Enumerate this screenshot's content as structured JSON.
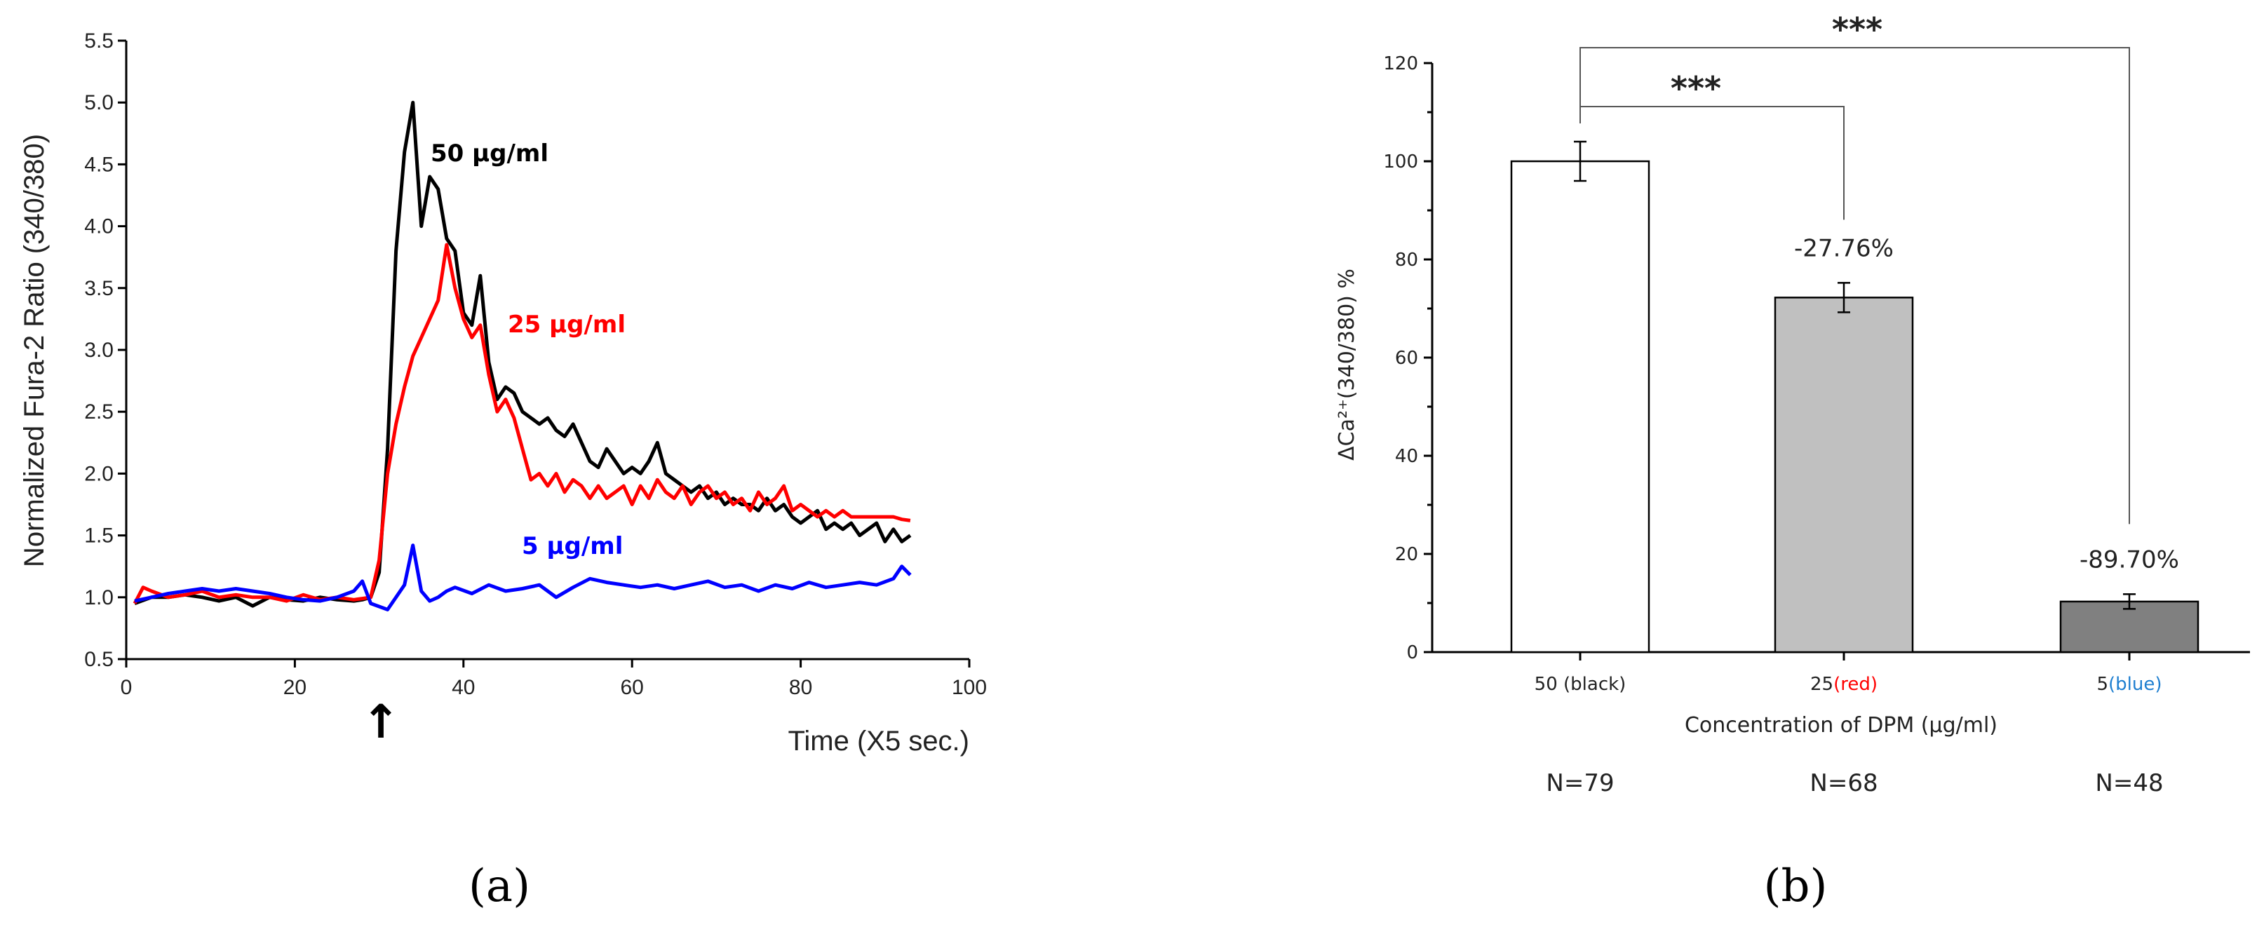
{
  "chart_data": [
    {
      "panel": "a",
      "type": "line",
      "xlabel": "Time (X5 sec.)",
      "ylabel": "Normalized Fura-2 Ratio (340/380)",
      "xlim": [
        0,
        100
      ],
      "ylim": [
        0.5,
        5.5
      ],
      "xticks": [
        "0",
        "20",
        "40",
        "60",
        "80",
        "100"
      ],
      "yticks": [
        "0.5",
        "1.0",
        "1.5",
        "2.0",
        "2.5",
        "3.0",
        "3.5",
        "4.0",
        "4.5",
        "5.0",
        "5.5"
      ],
      "arrow_x": 30,
      "arrow_symbol": "↑",
      "series": [
        {
          "name": "50 µg/ml",
          "color": "#000000",
          "x": [
            1,
            3,
            5,
            7,
            9,
            11,
            13,
            15,
            17,
            19,
            21,
            23,
            25,
            27,
            28,
            29,
            30,
            31,
            32,
            33,
            34,
            35,
            36,
            37,
            38,
            39,
            40,
            41,
            42,
            43,
            44,
            45,
            46,
            47,
            48,
            49,
            50,
            51,
            52,
            53,
            54,
            55,
            56,
            57,
            58,
            59,
            60,
            61,
            62,
            63,
            64,
            65,
            66,
            67,
            68,
            69,
            70,
            71,
            72,
            73,
            74,
            75,
            76,
            77,
            78,
            79,
            80,
            81,
            82,
            83,
            84,
            85,
            86,
            87,
            88,
            89,
            90,
            91,
            92,
            93
          ],
          "y": [
            0.95,
            1.0,
            1.0,
            1.02,
            1.0,
            0.97,
            1.0,
            0.93,
            1.0,
            0.98,
            0.97,
            1.0,
            0.98,
            0.97,
            0.98,
            1.0,
            1.2,
            2.2,
            3.8,
            4.6,
            5.0,
            4.0,
            4.4,
            4.3,
            3.9,
            3.8,
            3.3,
            3.2,
            3.6,
            2.9,
            2.6,
            2.7,
            2.65,
            2.5,
            2.45,
            2.4,
            2.45,
            2.35,
            2.3,
            2.4,
            2.25,
            2.1,
            2.05,
            2.2,
            2.1,
            2.0,
            2.05,
            2.0,
            2.1,
            2.25,
            2.0,
            1.95,
            1.9,
            1.85,
            1.9,
            1.8,
            1.85,
            1.75,
            1.8,
            1.75,
            1.75,
            1.7,
            1.8,
            1.7,
            1.75,
            1.65,
            1.6,
            1.65,
            1.7,
            1.55,
            1.6,
            1.55,
            1.6,
            1.5,
            1.55,
            1.6,
            1.45,
            1.55,
            1.45,
            1.5
          ]
        },
        {
          "name": "25 µg/ml",
          "color": "#ff0000",
          "x": [
            1,
            2,
            3,
            5,
            7,
            9,
            11,
            13,
            15,
            17,
            19,
            21,
            23,
            25,
            27,
            28,
            29,
            30,
            31,
            32,
            33,
            34,
            35,
            36,
            37,
            38,
            39,
            40,
            41,
            42,
            43,
            44,
            45,
            46,
            47,
            48,
            49,
            50,
            51,
            52,
            53,
            54,
            55,
            56,
            57,
            58,
            59,
            60,
            61,
            62,
            63,
            64,
            65,
            66,
            67,
            68,
            69,
            70,
            71,
            72,
            73,
            74,
            75,
            76,
            77,
            78,
            79,
            80,
            81,
            82,
            83,
            84,
            85,
            86,
            87,
            88,
            89,
            90,
            91,
            92,
            93
          ],
          "y": [
            0.95,
            1.08,
            1.05,
            1.0,
            1.02,
            1.05,
            1.0,
            1.02,
            1.0,
            1.0,
            0.97,
            1.02,
            0.98,
            1.0,
            0.98,
            0.99,
            1.0,
            1.3,
            2.0,
            2.4,
            2.7,
            2.95,
            3.1,
            3.25,
            3.4,
            3.85,
            3.5,
            3.25,
            3.1,
            3.2,
            2.8,
            2.5,
            2.6,
            2.45,
            2.2,
            1.95,
            2.0,
            1.9,
            2.0,
            1.85,
            1.95,
            1.9,
            1.8,
            1.9,
            1.8,
            1.85,
            1.9,
            1.75,
            1.9,
            1.8,
            1.95,
            1.85,
            1.8,
            1.9,
            1.75,
            1.85,
            1.9,
            1.8,
            1.85,
            1.75,
            1.8,
            1.7,
            1.85,
            1.75,
            1.8,
            1.9,
            1.7,
            1.75,
            1.7,
            1.65,
            1.7,
            1.65,
            1.7,
            1.65,
            1.65,
            1.65,
            1.65,
            1.65,
            1.65,
            1.63,
            1.62
          ]
        },
        {
          "name": "5 µg/ml",
          "color": "#0000ff",
          "x": [
            1,
            3,
            5,
            7,
            9,
            11,
            13,
            15,
            17,
            19,
            21,
            23,
            25,
            27,
            28,
            29,
            31,
            33,
            34,
            35,
            36,
            37,
            38,
            39,
            41,
            43,
            45,
            47,
            49,
            51,
            53,
            55,
            57,
            59,
            61,
            63,
            65,
            67,
            69,
            71,
            73,
            75,
            77,
            79,
            81,
            83,
            85,
            87,
            89,
            91,
            92,
            93
          ],
          "y": [
            0.97,
            1.0,
            1.03,
            1.05,
            1.07,
            1.05,
            1.07,
            1.05,
            1.03,
            1.0,
            0.98,
            0.97,
            1.0,
            1.05,
            1.13,
            0.95,
            0.9,
            1.1,
            1.42,
            1.05,
            0.97,
            1.0,
            1.05,
            1.08,
            1.03,
            1.1,
            1.05,
            1.07,
            1.1,
            1.0,
            1.08,
            1.15,
            1.12,
            1.1,
            1.08,
            1.1,
            1.07,
            1.1,
            1.13,
            1.08,
            1.1,
            1.05,
            1.1,
            1.07,
            1.12,
            1.08,
            1.1,
            1.12,
            1.1,
            1.15,
            1.25,
            1.18
          ]
        }
      ]
    },
    {
      "panel": "b",
      "type": "bar",
      "xlabel": "Concentration of DPM (µg/ml)",
      "ylabel": "ΔCa²⁺(340/380)  %",
      "ylim": [
        0,
        120
      ],
      "yticks": [
        "0",
        "20",
        "40",
        "60",
        "80",
        "100",
        "120"
      ],
      "categories": [
        {
          "value": "50",
          "note": " (black)",
          "note_color": "#222222"
        },
        {
          "value": "25",
          "note": "(red)",
          "note_color": "#ff0000"
        },
        {
          "value": "5",
          "note": "(blue)",
          "note_color": "#1f7fd0"
        }
      ],
      "values": [
        100,
        72.24,
        10.3
      ],
      "errors": [
        4,
        3,
        1.5
      ],
      "bar_colors": [
        "#ffffff",
        "#c0c0c0",
        "#808080"
      ],
      "change_labels": [
        "",
        "-27.76%",
        "-89.70%"
      ],
      "n_labels": [
        "N=79",
        "N=68",
        "N=48"
      ],
      "significance": [
        {
          "from": 0,
          "to": 1,
          "label": "***"
        },
        {
          "from": 0,
          "to": 2,
          "label": "***"
        }
      ]
    }
  ],
  "panel_labels": [
    "(a)",
    "(b)"
  ]
}
